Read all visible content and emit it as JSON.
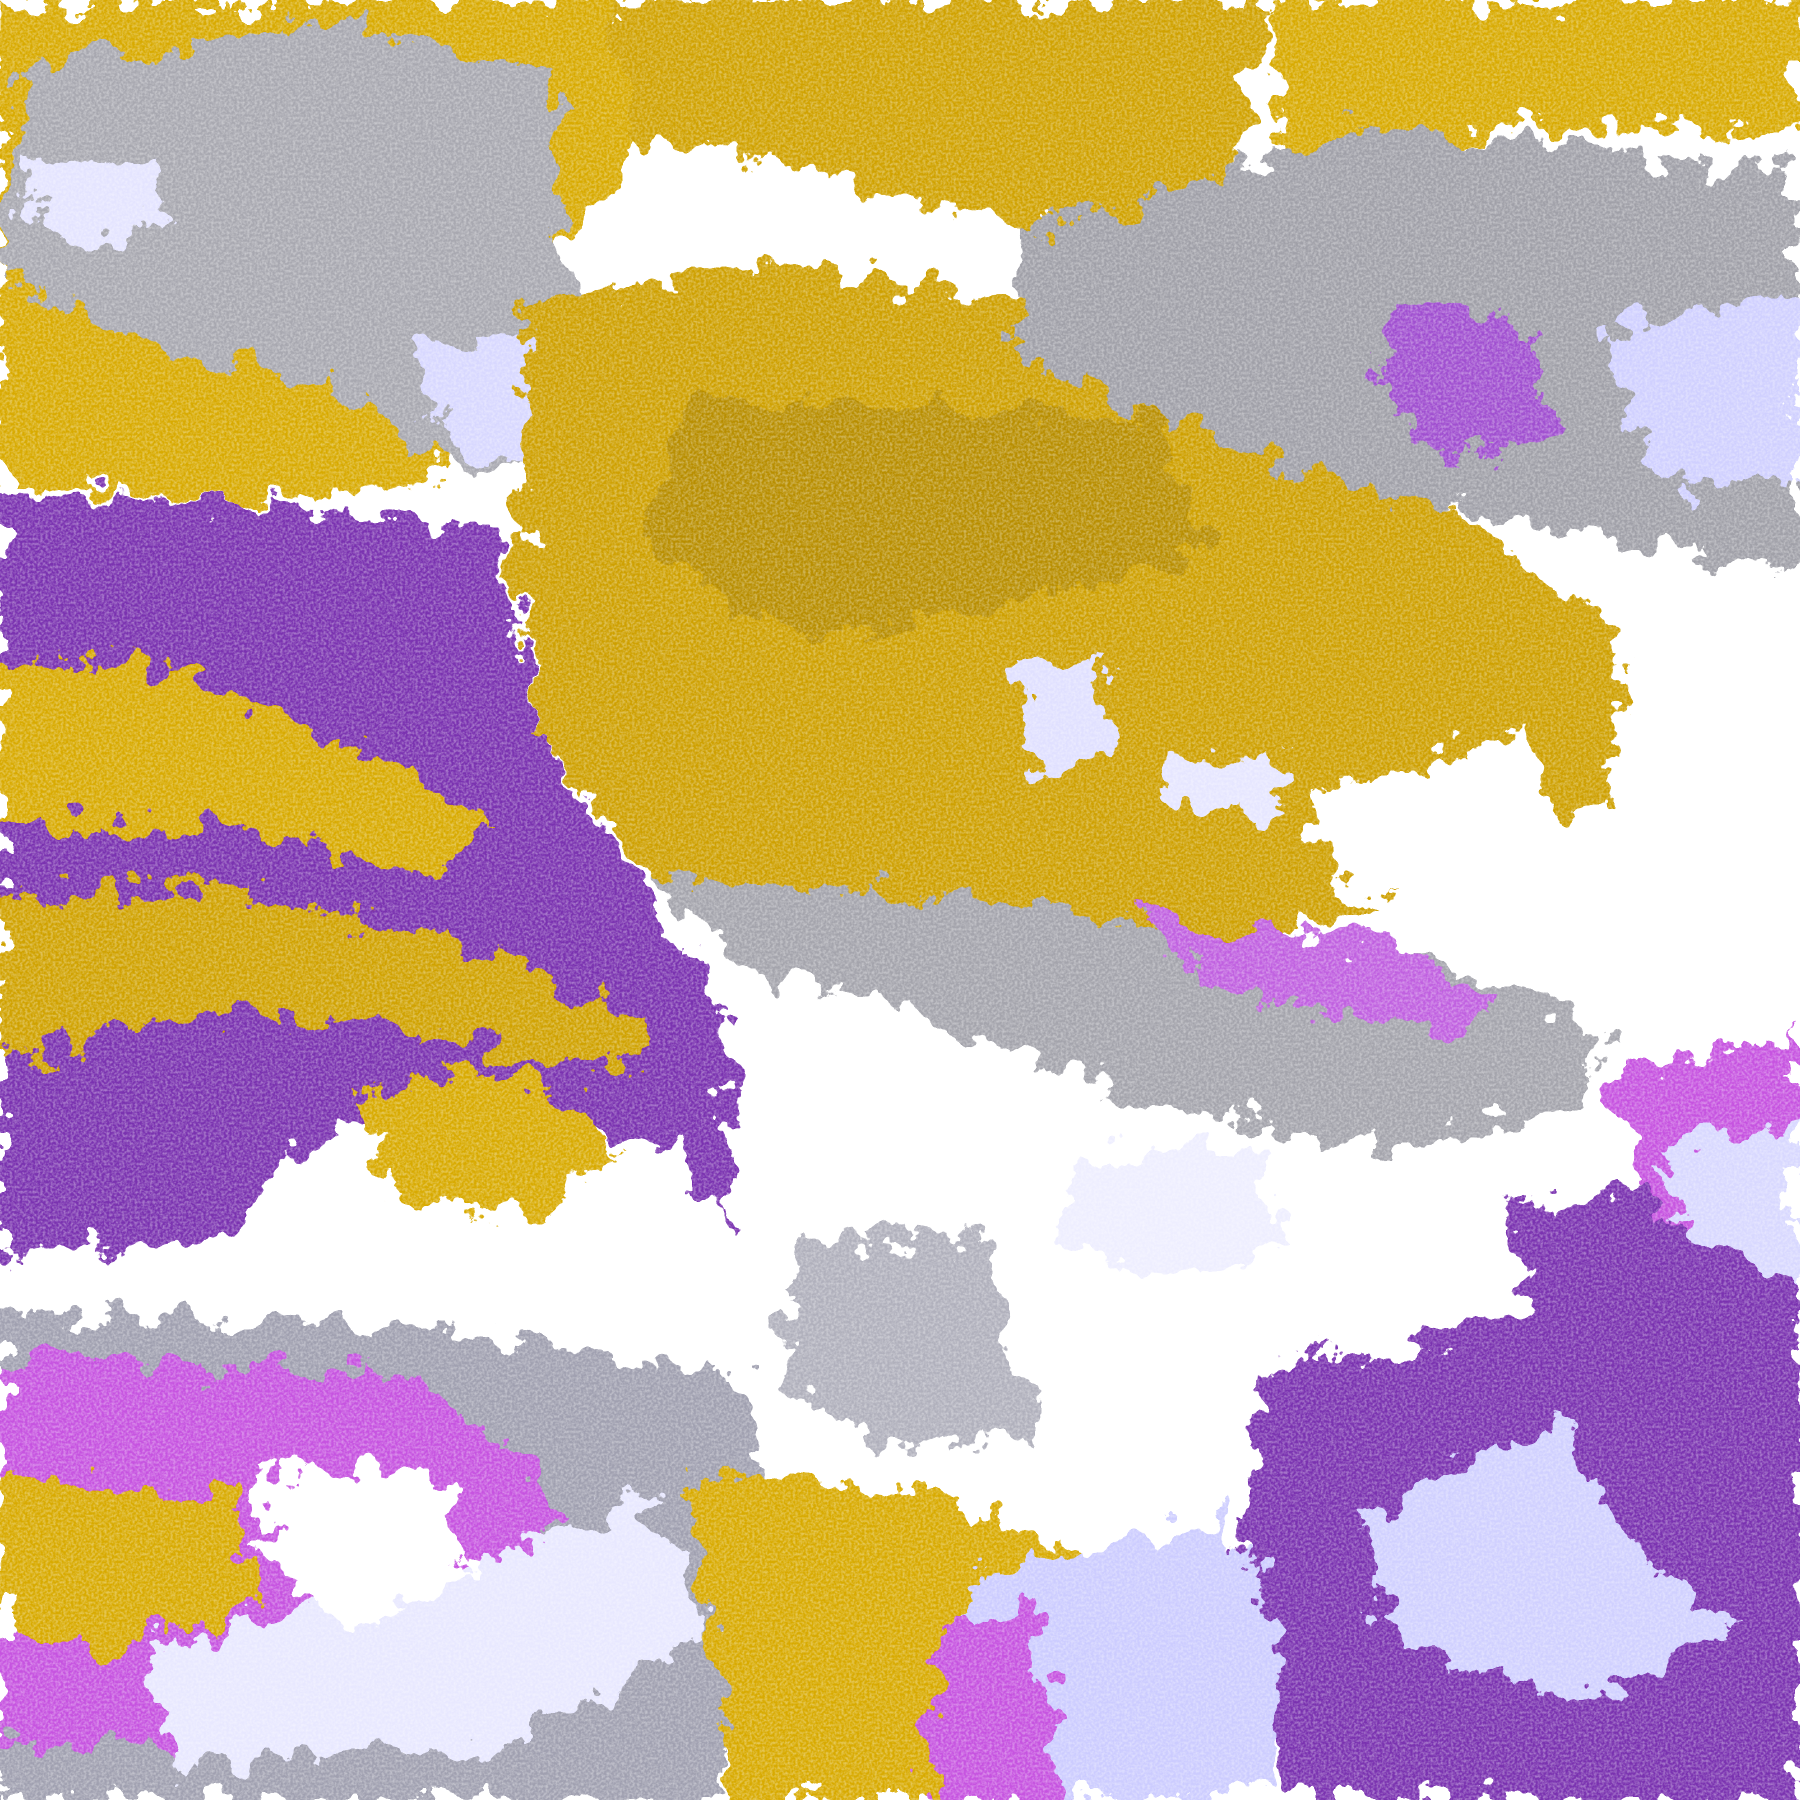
{
  "image": {
    "kind": "false-color satellite imagery",
    "palette": {
      "background": "#ffffff",
      "gold": "#d8aa00",
      "dark_gold": "#b88e00",
      "purple": "#7a32b0",
      "magenta": "#c653e0",
      "lavender": "#c8c8ff",
      "pale_lavender": "#eeeeff",
      "periwinkle": "#8888f0",
      "grey": "#a0a0a0"
    }
  }
}
